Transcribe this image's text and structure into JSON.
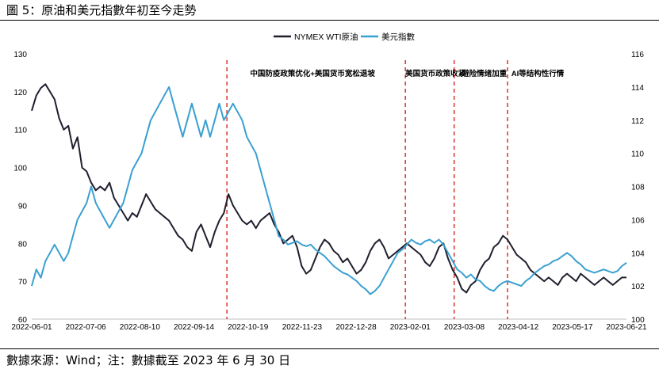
{
  "header": {
    "title": "圖 5：原油和美元指數年初至今走勢"
  },
  "footer": {
    "source": "數據來源：Wind；注：數據截至 2023 年 6 月 30 日"
  },
  "colors": {
    "oil": "#1f1f2e",
    "usd": "#3aa0d2",
    "event_line": "#d9342b",
    "axis": "#bfbfbf"
  },
  "chart_data": {
    "type": "line",
    "title": "",
    "x_tick_labels": [
      "2022-06-01",
      "2022-07-06",
      "2022-08-10",
      "2022-09-14",
      "2022-10-19",
      "2022-11-23",
      "2022-12-28",
      "2023-02-01",
      "2023-03-08",
      "2023-04-12",
      "2023-05-17",
      "2023-06-21"
    ],
    "x_range": [
      0,
      390
    ],
    "y_left": {
      "ticks": [
        60,
        70,
        80,
        90,
        100,
        110,
        120,
        130
      ],
      "range": [
        60,
        130
      ]
    },
    "y_right": {
      "ticks": [
        100,
        102,
        104,
        106,
        108,
        110,
        112,
        114,
        116
      ],
      "range": [
        100,
        116
      ]
    },
    "series": [
      {
        "name": "NYMEX WTI原油",
        "axis": "left",
        "color": "#1f1f2e",
        "points": [
          [
            0,
            115
          ],
          [
            3,
            119
          ],
          [
            6,
            121
          ],
          [
            9,
            122
          ],
          [
            12,
            120
          ],
          [
            15,
            118
          ],
          [
            18,
            113
          ],
          [
            21,
            110
          ],
          [
            24,
            111
          ],
          [
            27,
            105
          ],
          [
            30,
            108
          ],
          [
            33,
            100
          ],
          [
            36,
            99
          ],
          [
            39,
            96
          ],
          [
            42,
            94
          ],
          [
            45,
            95
          ],
          [
            48,
            94
          ],
          [
            51,
            96
          ],
          [
            54,
            92
          ],
          [
            57,
            90
          ],
          [
            60,
            88
          ],
          [
            63,
            86
          ],
          [
            66,
            88
          ],
          [
            69,
            87
          ],
          [
            72,
            90
          ],
          [
            75,
            93
          ],
          [
            78,
            91
          ],
          [
            81,
            89
          ],
          [
            84,
            88
          ],
          [
            87,
            87
          ],
          [
            90,
            86
          ],
          [
            93,
            84
          ],
          [
            96,
            82
          ],
          [
            99,
            81
          ],
          [
            102,
            79
          ],
          [
            105,
            78
          ],
          [
            108,
            83
          ],
          [
            111,
            85
          ],
          [
            114,
            82
          ],
          [
            117,
            79
          ],
          [
            120,
            83
          ],
          [
            123,
            86
          ],
          [
            126,
            88
          ],
          [
            129,
            93
          ],
          [
            132,
            90
          ],
          [
            135,
            88
          ],
          [
            138,
            86
          ],
          [
            141,
            85
          ],
          [
            144,
            86
          ],
          [
            147,
            84
          ],
          [
            150,
            86
          ],
          [
            153,
            87
          ],
          [
            156,
            88
          ],
          [
            159,
            85
          ],
          [
            162,
            83
          ],
          [
            165,
            80
          ],
          [
            168,
            81
          ],
          [
            171,
            82
          ],
          [
            174,
            79
          ],
          [
            177,
            74
          ],
          [
            180,
            72
          ],
          [
            183,
            73
          ],
          [
            186,
            76
          ],
          [
            189,
            79
          ],
          [
            192,
            81
          ],
          [
            195,
            80
          ],
          [
            198,
            78
          ],
          [
            201,
            77
          ],
          [
            204,
            75
          ],
          [
            207,
            76
          ],
          [
            210,
            74
          ],
          [
            213,
            72
          ],
          [
            216,
            73
          ],
          [
            219,
            75
          ],
          [
            222,
            78
          ],
          [
            225,
            80
          ],
          [
            228,
            81
          ],
          [
            231,
            79
          ],
          [
            234,
            76
          ],
          [
            237,
            77
          ],
          [
            240,
            78
          ],
          [
            243,
            79
          ],
          [
            246,
            80
          ],
          [
            249,
            79
          ],
          [
            252,
            78
          ],
          [
            255,
            77
          ],
          [
            258,
            75
          ],
          [
            261,
            74
          ],
          [
            264,
            76
          ],
          [
            267,
            79
          ],
          [
            270,
            80
          ],
          [
            273,
            76
          ],
          [
            276,
            73
          ],
          [
            279,
            71
          ],
          [
            282,
            68
          ],
          [
            285,
            67
          ],
          [
            288,
            69
          ],
          [
            291,
            70
          ],
          [
            294,
            73
          ],
          [
            297,
            75
          ],
          [
            300,
            76
          ],
          [
            303,
            79
          ],
          [
            306,
            80
          ],
          [
            309,
            82
          ],
          [
            312,
            81
          ],
          [
            315,
            79
          ],
          [
            318,
            77
          ],
          [
            321,
            76
          ],
          [
            324,
            75
          ],
          [
            327,
            73
          ],
          [
            330,
            72
          ],
          [
            333,
            71
          ],
          [
            336,
            70
          ],
          [
            339,
            71
          ],
          [
            342,
            70
          ],
          [
            345,
            69
          ],
          [
            348,
            71
          ],
          [
            351,
            72
          ],
          [
            354,
            71
          ],
          [
            357,
            70
          ],
          [
            360,
            72
          ],
          [
            363,
            71
          ],
          [
            366,
            70
          ],
          [
            369,
            69
          ],
          [
            372,
            70
          ],
          [
            375,
            71
          ],
          [
            378,
            70
          ],
          [
            381,
            69
          ],
          [
            384,
            70
          ],
          [
            387,
            71
          ],
          [
            390,
            71
          ]
        ]
      },
      {
        "name": "美元指數",
        "axis": "right",
        "color": "#3aa0d2",
        "points": [
          [
            0,
            102
          ],
          [
            3,
            103
          ],
          [
            6,
            102.5
          ],
          [
            9,
            103.5
          ],
          [
            12,
            104
          ],
          [
            15,
            104.5
          ],
          [
            18,
            104
          ],
          [
            21,
            103.5
          ],
          [
            24,
            104
          ],
          [
            27,
            105
          ],
          [
            30,
            106
          ],
          [
            33,
            106.5
          ],
          [
            36,
            107
          ],
          [
            39,
            108
          ],
          [
            42,
            107
          ],
          [
            45,
            106.5
          ],
          [
            48,
            106
          ],
          [
            51,
            105.5
          ],
          [
            54,
            106
          ],
          [
            57,
            106.5
          ],
          [
            60,
            107
          ],
          [
            63,
            108
          ],
          [
            66,
            109
          ],
          [
            69,
            109.5
          ],
          [
            72,
            110
          ],
          [
            75,
            111
          ],
          [
            78,
            112
          ],
          [
            81,
            112.5
          ],
          [
            84,
            113
          ],
          [
            87,
            113.5
          ],
          [
            90,
            114
          ],
          [
            93,
            113
          ],
          [
            96,
            112
          ],
          [
            99,
            111
          ],
          [
            102,
            112
          ],
          [
            105,
            113
          ],
          [
            108,
            112
          ],
          [
            111,
            111
          ],
          [
            114,
            112
          ],
          [
            117,
            111
          ],
          [
            120,
            112
          ],
          [
            123,
            113
          ],
          [
            126,
            112
          ],
          [
            129,
            112.5
          ],
          [
            132,
            113
          ],
          [
            135,
            112.5
          ],
          [
            138,
            112
          ],
          [
            141,
            111
          ],
          [
            144,
            110.5
          ],
          [
            147,
            110
          ],
          [
            150,
            109
          ],
          [
            153,
            108
          ],
          [
            156,
            107
          ],
          [
            159,
            106
          ],
          [
            162,
            105
          ],
          [
            165,
            104.8
          ],
          [
            168,
            104.5
          ],
          [
            171,
            104.6
          ],
          [
            174,
            104.7
          ],
          [
            177,
            104.5
          ],
          [
            180,
            104.4
          ],
          [
            183,
            104.5
          ],
          [
            186,
            104.2
          ],
          [
            189,
            104
          ],
          [
            192,
            103.8
          ],
          [
            195,
            103.5
          ],
          [
            198,
            103.2
          ],
          [
            201,
            103
          ],
          [
            204,
            102.8
          ],
          [
            207,
            102.7
          ],
          [
            210,
            102.5
          ],
          [
            213,
            102.3
          ],
          [
            216,
            102
          ],
          [
            219,
            101.8
          ],
          [
            222,
            101.5
          ],
          [
            225,
            101.7
          ],
          [
            228,
            102
          ],
          [
            231,
            102.5
          ],
          [
            234,
            103
          ],
          [
            237,
            103.5
          ],
          [
            240,
            104
          ],
          [
            243,
            104.2
          ],
          [
            246,
            104.5
          ],
          [
            249,
            104.8
          ],
          [
            252,
            104.6
          ],
          [
            255,
            104.5
          ],
          [
            258,
            104.7
          ],
          [
            261,
            104.8
          ],
          [
            264,
            104.6
          ],
          [
            267,
            104.8
          ],
          [
            270,
            104.5
          ],
          [
            273,
            104
          ],
          [
            276,
            103.5
          ],
          [
            279,
            103
          ],
          [
            282,
            102.8
          ],
          [
            285,
            102.5
          ],
          [
            288,
            102.7
          ],
          [
            291,
            102.4
          ],
          [
            294,
            102.3
          ],
          [
            297,
            102
          ],
          [
            300,
            101.8
          ],
          [
            303,
            101.7
          ],
          [
            306,
            102
          ],
          [
            309,
            102.2
          ],
          [
            312,
            102.3
          ],
          [
            315,
            102.2
          ],
          [
            318,
            102.1
          ],
          [
            321,
            102
          ],
          [
            324,
            102.3
          ],
          [
            327,
            102.5
          ],
          [
            330,
            102.8
          ],
          [
            333,
            103
          ],
          [
            336,
            103.2
          ],
          [
            339,
            103.3
          ],
          [
            342,
            103.5
          ],
          [
            345,
            103.6
          ],
          [
            348,
            103.8
          ],
          [
            351,
            104
          ],
          [
            354,
            103.8
          ],
          [
            357,
            103.5
          ],
          [
            360,
            103.3
          ],
          [
            363,
            103
          ],
          [
            366,
            102.9
          ],
          [
            369,
            102.8
          ],
          [
            372,
            102.9
          ],
          [
            375,
            103
          ],
          [
            378,
            102.9
          ],
          [
            381,
            102.8
          ],
          [
            384,
            102.9
          ],
          [
            387,
            103.2
          ],
          [
            390,
            103.4
          ]
        ]
      }
    ],
    "events": [
      {
        "x": 128,
        "label": "中国防疫政策优化+美国货币宽松退坡"
      },
      {
        "x": 245,
        "label": "美国货币政策收紧"
      },
      {
        "x": 277,
        "label": "避险情绪加重"
      },
      {
        "x": 312,
        "label": "AI等结构性行情"
      }
    ],
    "legend": {
      "position": "top-center"
    }
  }
}
